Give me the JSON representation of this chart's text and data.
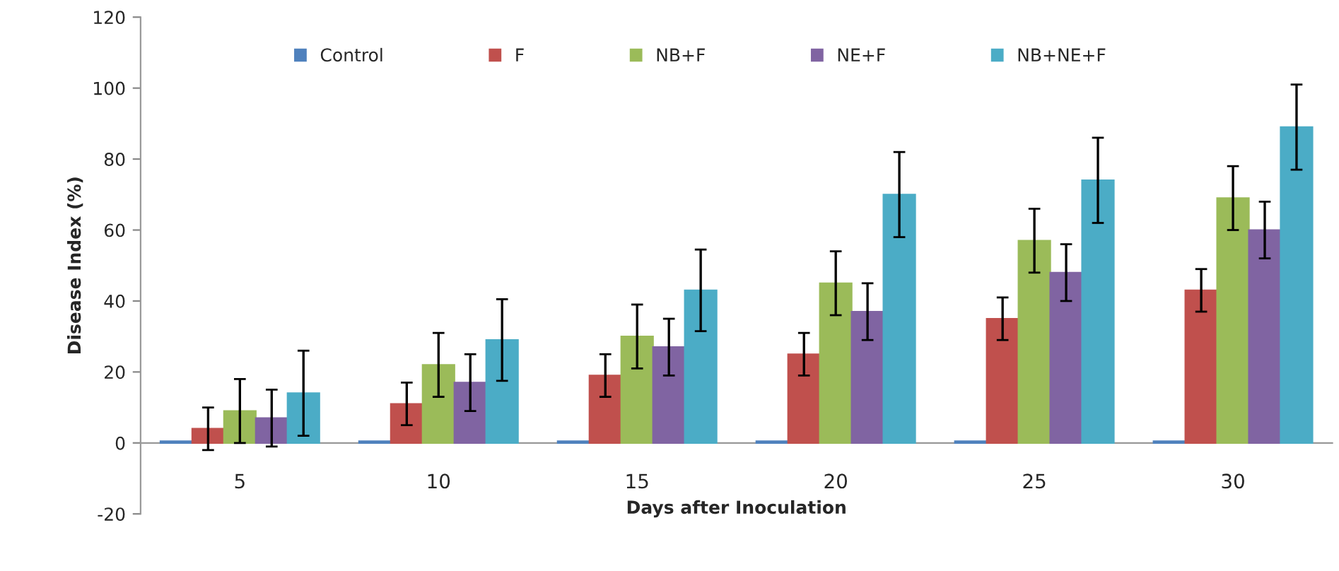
{
  "chart_data": {
    "type": "bar",
    "xlabel": "Days after Inoculation",
    "ylabel": "Disease Index (%)",
    "categories": [
      "5",
      "10",
      "15",
      "20",
      "25",
      "30"
    ],
    "series": [
      {
        "name": "Control",
        "color": "#4f81bd",
        "values": [
          0.5,
          0.5,
          0.5,
          0.5,
          0.5,
          0.5
        ]
      },
      {
        "name": "F",
        "color": "#c0504d",
        "values": [
          4,
          11,
          19,
          25,
          35,
          43
        ],
        "errors": [
          6,
          6,
          6,
          6,
          6,
          6
        ]
      },
      {
        "name": "NB+F",
        "color": "#9bbb59",
        "values": [
          9,
          22,
          30,
          45,
          57,
          69
        ],
        "errors": [
          9,
          9,
          9,
          9,
          9,
          9
        ]
      },
      {
        "name": "NE+F",
        "color": "#8064a2",
        "values": [
          7,
          17,
          27,
          37,
          48,
          60
        ],
        "errors": [
          8,
          8,
          8,
          8,
          8,
          8
        ]
      },
      {
        "name": "NB+NE+F",
        "color": "#4bacc6",
        "values": [
          14,
          29,
          43,
          70,
          74,
          89
        ],
        "errors": [
          12,
          11.5,
          11.5,
          12,
          12,
          12
        ]
      }
    ],
    "ylim": [
      -20,
      120
    ],
    "yticks": [
      -20,
      0,
      20,
      40,
      60,
      80,
      100,
      120
    ],
    "grid": false,
    "legend": "top"
  }
}
